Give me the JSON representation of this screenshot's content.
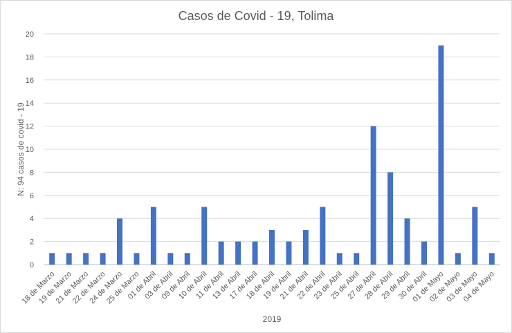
{
  "chart_data": {
    "type": "bar",
    "title": "Casos de Covid - 19, Tolima",
    "xlabel": "2019",
    "ylabel": "N: 94 casos de covid - 19",
    "ylim": [
      0,
      20
    ],
    "yticks": [
      0,
      2,
      4,
      6,
      8,
      10,
      12,
      14,
      16,
      18,
      20
    ],
    "grid": true,
    "legend": "none",
    "bar_color": "#4472c4",
    "categories": [
      "18 de Marzo",
      "19 de Marzo",
      "21 de Marzo",
      "22 de Marzo",
      "24 de Marzo",
      "25 de Marzo",
      "01 de Abril",
      "03 de Abril",
      "09 de Abril",
      "10 de Abril",
      "11 de Abril",
      "13 de Abril",
      "17 de Abril",
      "18 de Abril",
      "19 de Abril",
      "21 de Abril",
      "22 de Abril",
      "23 de Abril",
      "25 de Abril",
      "27 de Abril",
      "28 de Abril",
      "29 de Abril",
      "30 de Abril",
      "01 de Mayo",
      "02 de Mayo",
      "03 de Mayo",
      "04 de Mayo"
    ],
    "values": [
      1,
      1,
      1,
      1,
      4,
      1,
      5,
      1,
      1,
      5,
      2,
      2,
      2,
      3,
      2,
      3,
      5,
      1,
      1,
      12,
      8,
      4,
      2,
      19,
      1,
      5,
      1
    ]
  }
}
